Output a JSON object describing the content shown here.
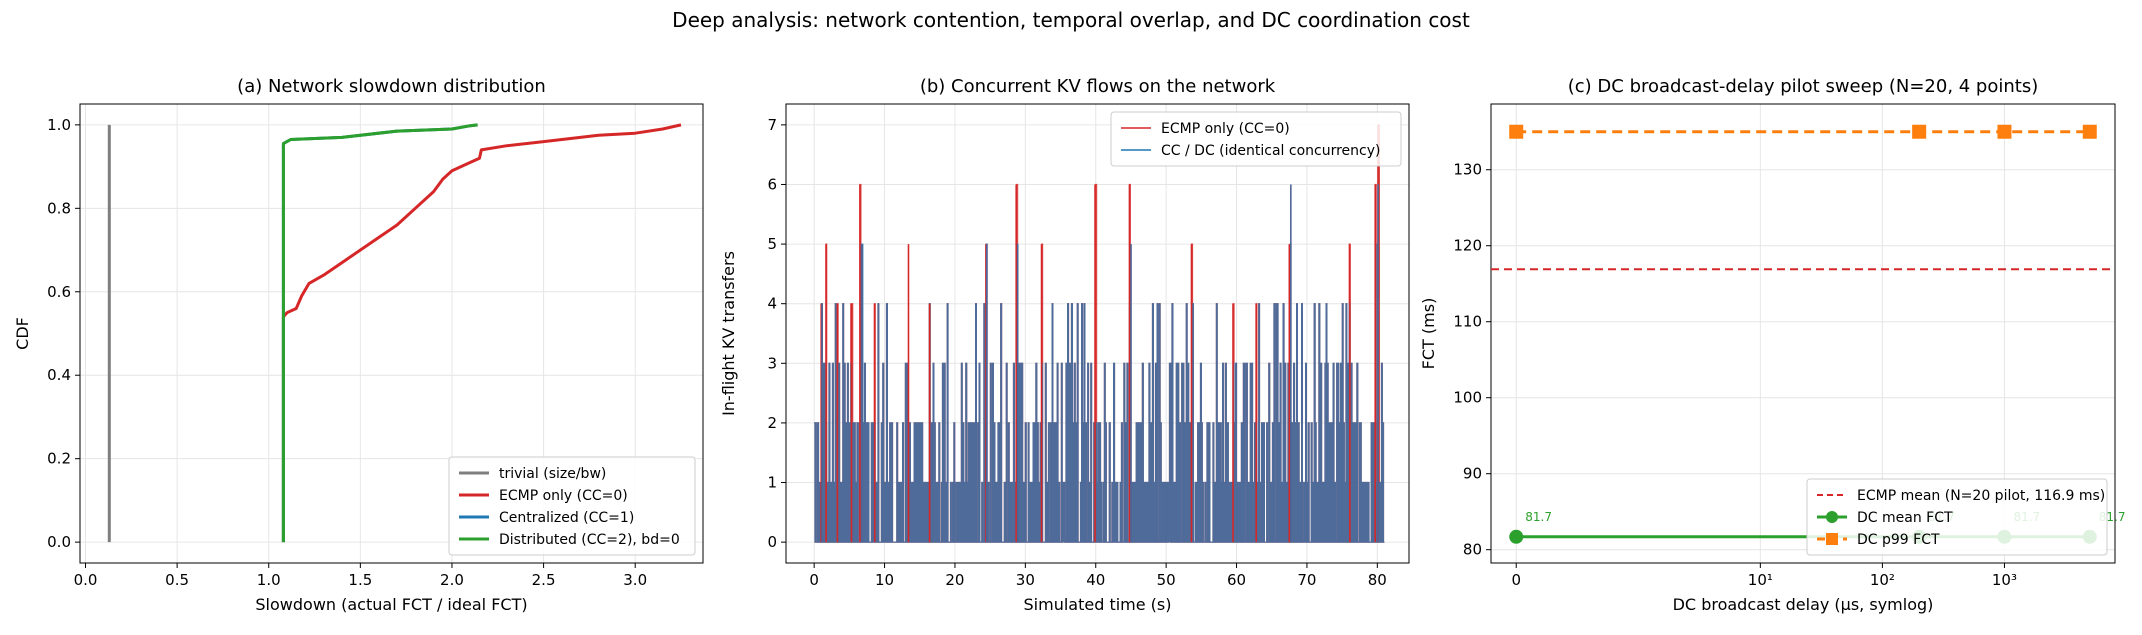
{
  "figure": {
    "suptitle": "Deep analysis: network contention, temporal overlap, and DC coordination cost"
  },
  "chart_data": [
    {
      "type": "line",
      "title": "(a) Network slowdown distribution",
      "xlabel": "Slowdown (actual FCT / ideal FCT)",
      "ylabel": "CDF",
      "xlim": [
        -0.03,
        3.37
      ],
      "ylim": [
        -0.05,
        1.05
      ],
      "xticks": [
        0.0,
        0.5,
        1.0,
        1.5,
        2.0,
        2.5,
        3.0
      ],
      "xtick_labels": [
        "0.0",
        "0.5",
        "1.0",
        "1.5",
        "2.0",
        "2.5",
        "3.0"
      ],
      "yticks": [
        0.0,
        0.2,
        0.4,
        0.6,
        0.8,
        1.0
      ],
      "ytick_labels": [
        "0.0",
        "0.2",
        "0.4",
        "0.6",
        "0.8",
        "1.0"
      ],
      "grid": true,
      "legend_position": "lower-right",
      "series": [
        {
          "name": "trivial (size/bw)",
          "color": "#7f7f7f",
          "points": [
            [
              0.13,
              0.0
            ],
            [
              0.13,
              1.0
            ]
          ]
        },
        {
          "name": "ECMP only (CC=0)",
          "color": "#d62728",
          "points": [
            [
              1.08,
              0.0
            ],
            [
              1.08,
              0.54
            ],
            [
              1.1,
              0.55
            ],
            [
              1.15,
              0.56
            ],
            [
              1.18,
              0.59
            ],
            [
              1.22,
              0.62
            ],
            [
              1.3,
              0.64
            ],
            [
              1.4,
              0.67
            ],
            [
              1.5,
              0.7
            ],
            [
              1.6,
              0.73
            ],
            [
              1.7,
              0.76
            ],
            [
              1.8,
              0.8
            ],
            [
              1.9,
              0.84
            ],
            [
              1.95,
              0.87
            ],
            [
              2.0,
              0.89
            ],
            [
              2.1,
              0.91
            ],
            [
              2.15,
              0.92
            ],
            [
              2.16,
              0.94
            ],
            [
              2.3,
              0.95
            ],
            [
              2.5,
              0.96
            ],
            [
              2.8,
              0.975
            ],
            [
              3.0,
              0.98
            ],
            [
              3.15,
              0.99
            ],
            [
              3.25,
              1.0
            ]
          ]
        },
        {
          "name": "Centralized (CC=1)",
          "color": "#1f77b4",
          "points": [
            [
              1.08,
              0.0
            ],
            [
              1.08,
              0.955
            ],
            [
              1.12,
              0.965
            ],
            [
              1.4,
              0.97
            ],
            [
              1.7,
              0.985
            ],
            [
              2.0,
              0.99
            ],
            [
              2.1,
              0.998
            ],
            [
              2.14,
              1.0
            ]
          ]
        },
        {
          "name": "Distributed (CC=2), bd=0",
          "color": "#2ca02c",
          "points": [
            [
              1.08,
              0.0
            ],
            [
              1.08,
              0.955
            ],
            [
              1.12,
              0.965
            ],
            [
              1.4,
              0.97
            ],
            [
              1.7,
              0.985
            ],
            [
              2.0,
              0.99
            ],
            [
              2.1,
              0.998
            ],
            [
              2.14,
              1.0
            ]
          ]
        }
      ]
    },
    {
      "type": "line",
      "title": "(b) Concurrent KV flows on the network",
      "xlabel": "Simulated time (s)",
      "ylabel": "In-flight KV transfers",
      "xlim": [
        -4.0,
        84.5
      ],
      "ylim": [
        -0.35,
        7.35
      ],
      "xticks": [
        0,
        10,
        20,
        30,
        40,
        50,
        60,
        70,
        80
      ],
      "xtick_labels": [
        "0",
        "10",
        "20",
        "30",
        "40",
        "50",
        "60",
        "70",
        "80"
      ],
      "yticks": [
        0,
        1,
        2,
        3,
        4,
        5,
        6,
        7
      ],
      "ytick_labels": [
        "0",
        "1",
        "2",
        "3",
        "4",
        "5",
        "6",
        "7"
      ],
      "grid": true,
      "legend_position": "upper-right",
      "series": [
        {
          "name": "ECMP only (CC=0)",
          "color": "#d62728",
          "peaks": [
            [
              1.0,
              4
            ],
            [
              1.7,
              5
            ],
            [
              3.3,
              4
            ],
            [
              5.3,
              4
            ],
            [
              6.5,
              6
            ],
            [
              8.6,
              4
            ],
            [
              13.4,
              5
            ],
            [
              16.4,
              4
            ],
            [
              24.4,
              5
            ],
            [
              28.7,
              6
            ],
            [
              32.3,
              5
            ],
            [
              39.9,
              6
            ],
            [
              44.8,
              6
            ],
            [
              53.6,
              5
            ],
            [
              59.5,
              4
            ],
            [
              62.8,
              4
            ],
            [
              67.5,
              5
            ],
            [
              76.1,
              5
            ],
            [
              79.7,
              6
            ],
            [
              80.1,
              7
            ]
          ]
        },
        {
          "name": "CC / DC (identical concurrency)",
          "color": "#1f77b4",
          "peaks": [
            [
              1.0,
              4
            ],
            [
              6.7,
              5
            ],
            [
              24.4,
              5
            ],
            [
              28.8,
              5
            ],
            [
              44.9,
              5
            ],
            [
              67.6,
              6
            ],
            [
              80.0,
              6
            ]
          ]
        }
      ]
    },
    {
      "type": "line",
      "title": "(c) DC broadcast-delay pilot sweep (N=20, 4 points)",
      "xlabel": "DC broadcast delay (µs, symlog)",
      "ylabel": "FCT (ms)",
      "xscale": "symlog",
      "xticks": [
        0,
        10,
        100,
        1000
      ],
      "xtick_labels": [
        "0",
        "10¹",
        "10²",
        "10³"
      ],
      "ylim": [
        78.25,
        138.65
      ],
      "yticks": [
        80,
        90,
        100,
        110,
        120,
        130
      ],
      "ytick_labels": [
        "80",
        "90",
        "100",
        "110",
        "120",
        "130"
      ],
      "grid": true,
      "legend_position": "lower-right",
      "reference_line": {
        "name": "ECMP mean (N=20 pilot, 116.9 ms)",
        "y": 116.9,
        "color": "#d62728"
      },
      "series": [
        {
          "name": "DC mean FCT",
          "color": "#2ca02c",
          "x": [
            0,
            200,
            1000,
            5000
          ],
          "y": [
            81.7,
            81.7,
            81.7,
            81.7
          ],
          "data_labels": [
            "81.7",
            "81.7",
            "81.7",
            "81.7"
          ]
        },
        {
          "name": "DC p99 FCT",
          "color": "#ff7f0e",
          "x": [
            0,
            200,
            1000,
            5000
          ],
          "y": [
            135.0,
            135.0,
            135.0,
            135.0
          ]
        }
      ]
    }
  ]
}
